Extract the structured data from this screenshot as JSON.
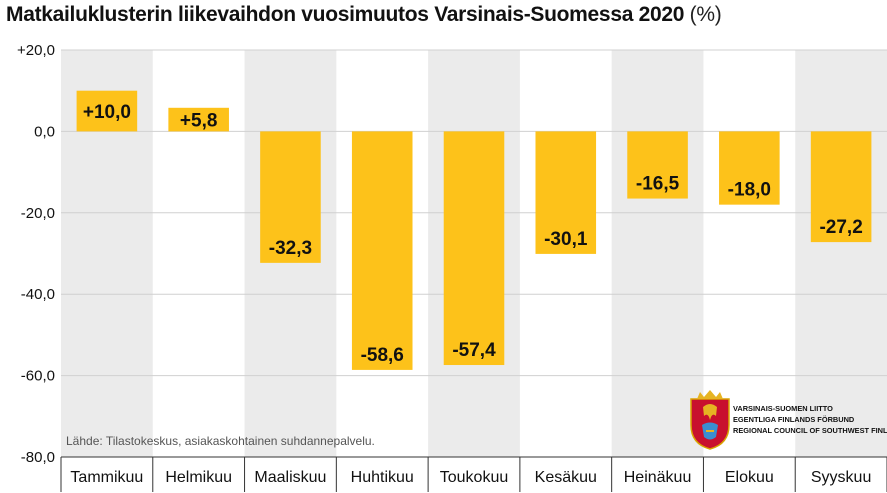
{
  "title": "Matkailuklusterin liikevaihdon vuosimuutos Varsinais-Suomessa  2020",
  "title_unit": "(%)",
  "source": "Lähde: Tilastokeskus, asiakaskohtainen suhdannepalvelu.",
  "logo": {
    "icon": "coat-of-arms-icon",
    "lines": [
      "VARSINAIS-SUOMEN LIITTO",
      "EGENTLIGA FINLANDS FÖRBUND",
      "REGIONAL COUNCIL OF SOUTHWEST FINLAND"
    ]
  },
  "colors": {
    "bar": "#FDC21A",
    "band": "#EBEBEB",
    "grid": "#D0D0D0"
  },
  "chart_data": {
    "type": "bar",
    "categories": [
      "Tammikuu",
      "Helmikuu",
      "Maaliskuu",
      "Huhtikuu",
      "Toukokuu",
      "Kesäkuu",
      "Heinäkuu",
      "Elokuu",
      "Syyskuu"
    ],
    "values": [
      10.0,
      5.8,
      -32.3,
      -58.6,
      -57.4,
      -30.1,
      -16.5,
      -18.0,
      -27.2
    ],
    "value_labels": [
      "+10,0",
      "+5,8",
      "-32,3",
      "-58,6",
      "-57,4",
      "-30,1",
      "-16,5",
      "-18,0",
      "-27,2"
    ],
    "ylim": [
      -80,
      20
    ],
    "yticks": [
      20,
      0,
      -20,
      -40,
      -60,
      -80
    ],
    "ytick_labels": [
      "+20,0",
      "0,0",
      "-20,0",
      "-40,0",
      "-60,0",
      "-80,0"
    ],
    "grid": true,
    "alternating_background": true,
    "xlabel": "",
    "ylabel": ""
  }
}
